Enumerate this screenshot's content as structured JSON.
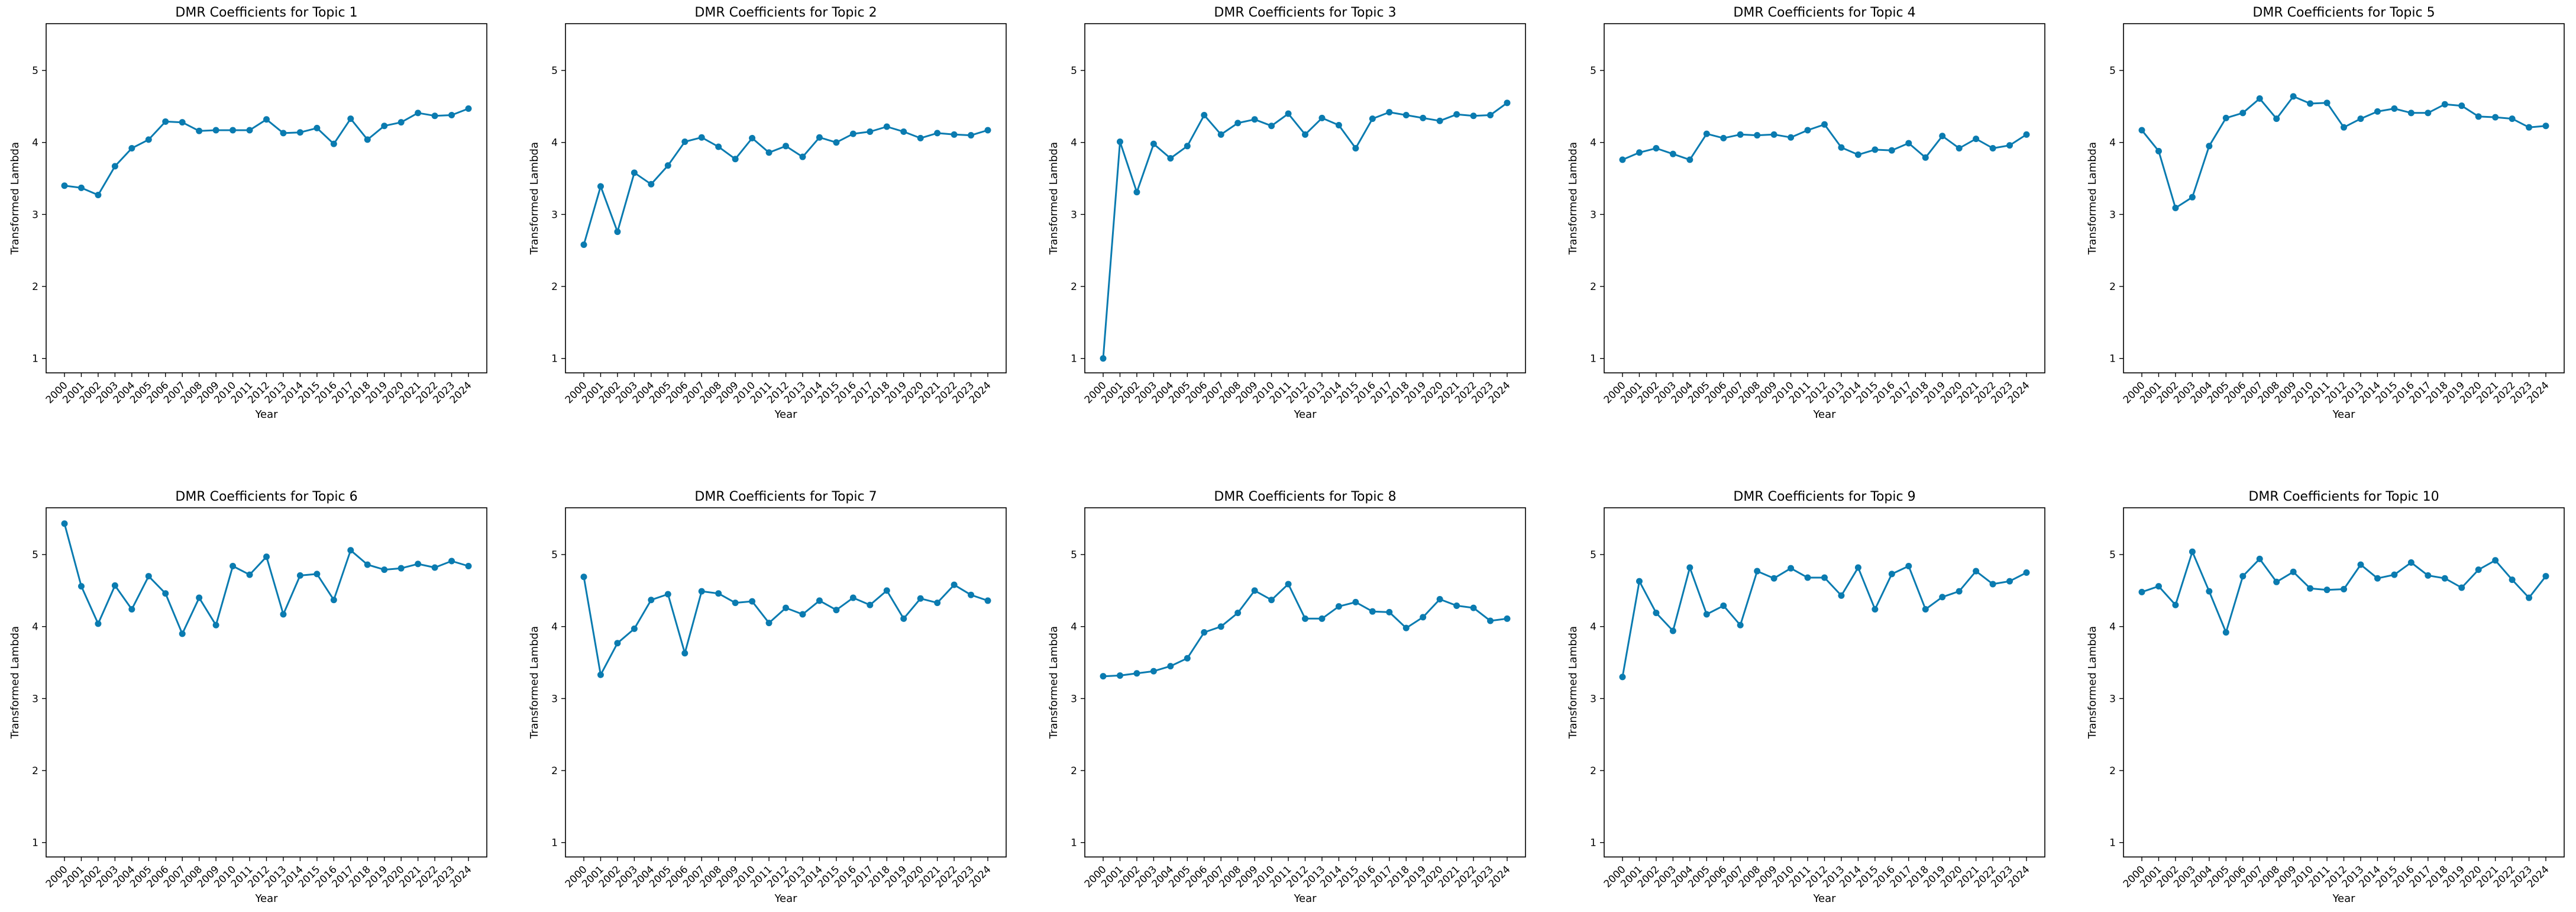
{
  "chart_data": [
    {
      "type": "line",
      "title": "DMR Coefficients for Topic 1",
      "xlabel": "Year",
      "ylabel": "Transformed Lambda",
      "x": [
        "2000",
        "2001",
        "2002",
        "2003",
        "2004",
        "2005",
        "2006",
        "2007",
        "2008",
        "2009",
        "2010",
        "2011",
        "2012",
        "2013",
        "2014",
        "2015",
        "2016",
        "2017",
        "2018",
        "2019",
        "2020",
        "2021",
        "2022",
        "2023",
        "2024"
      ],
      "values": [
        3.4,
        3.37,
        3.27,
        3.67,
        3.92,
        4.04,
        4.29,
        4.28,
        4.16,
        4.17,
        4.17,
        4.17,
        4.32,
        4.13,
        4.14,
        4.2,
        3.98,
        4.33,
        4.04,
        4.23,
        4.28,
        4.41,
        4.37,
        4.38,
        4.47
      ],
      "yticks": [
        1,
        2,
        3,
        4,
        5
      ],
      "ylim": [
        0.8,
        5.65
      ],
      "color": "#0a7bb0",
      "grid": false,
      "marker": "circle"
    },
    {
      "type": "line",
      "title": "DMR Coefficients for Topic 2",
      "xlabel": "Year",
      "ylabel": "Transformed Lambda",
      "x": [
        "2000",
        "2001",
        "2002",
        "2003",
        "2004",
        "2005",
        "2006",
        "2007",
        "2008",
        "2009",
        "2010",
        "2011",
        "2012",
        "2013",
        "2014",
        "2015",
        "2016",
        "2017",
        "2018",
        "2019",
        "2020",
        "2021",
        "2022",
        "2023",
        "2024"
      ],
      "values": [
        2.58,
        3.39,
        2.76,
        3.58,
        3.42,
        3.68,
        4.01,
        4.07,
        3.94,
        3.77,
        4.06,
        3.86,
        3.95,
        3.8,
        4.07,
        4.0,
        4.12,
        4.15,
        4.22,
        4.15,
        4.06,
        4.13,
        4.11,
        4.1,
        4.17
      ],
      "yticks": [
        1,
        2,
        3,
        4,
        5
      ],
      "ylim": [
        0.8,
        5.65
      ],
      "color": "#0a7bb0",
      "grid": false,
      "marker": "circle"
    },
    {
      "type": "line",
      "title": "DMR Coefficients for Topic 3",
      "xlabel": "Year",
      "ylabel": "Transformed Lambda",
      "x": [
        "2000",
        "2001",
        "2002",
        "2003",
        "2004",
        "2005",
        "2006",
        "2007",
        "2008",
        "2009",
        "2010",
        "2011",
        "2012",
        "2013",
        "2014",
        "2015",
        "2016",
        "2017",
        "2018",
        "2019",
        "2020",
        "2021",
        "2022",
        "2023",
        "2024"
      ],
      "values": [
        1.0,
        4.01,
        3.31,
        3.98,
        3.78,
        3.95,
        4.38,
        4.11,
        4.27,
        4.32,
        4.23,
        4.4,
        4.11,
        4.34,
        4.24,
        3.92,
        4.33,
        4.42,
        4.38,
        4.34,
        4.3,
        4.39,
        4.37,
        4.38,
        4.55
      ],
      "yticks": [
        1,
        2,
        3,
        4,
        5
      ],
      "ylim": [
        0.8,
        5.65
      ],
      "color": "#0a7bb0",
      "grid": false,
      "marker": "circle"
    },
    {
      "type": "line",
      "title": "DMR Coefficients for Topic 4",
      "xlabel": "Year",
      "ylabel": "Transformed Lambda",
      "x": [
        "2000",
        "2001",
        "2002",
        "2003",
        "2004",
        "2005",
        "2006",
        "2007",
        "2008",
        "2009",
        "2010",
        "2011",
        "2012",
        "2013",
        "2014",
        "2015",
        "2016",
        "2017",
        "2018",
        "2019",
        "2020",
        "2021",
        "2022",
        "2023",
        "2024"
      ],
      "values": [
        3.76,
        3.86,
        3.92,
        3.84,
        3.76,
        4.12,
        4.06,
        4.11,
        4.1,
        4.11,
        4.07,
        4.17,
        4.25,
        3.93,
        3.83,
        3.9,
        3.89,
        3.99,
        3.79,
        4.09,
        3.92,
        4.05,
        3.92,
        3.96,
        4.11
      ],
      "yticks": [
        1,
        2,
        3,
        4,
        5
      ],
      "ylim": [
        0.8,
        5.65
      ],
      "color": "#0a7bb0",
      "grid": false,
      "marker": "circle"
    },
    {
      "type": "line",
      "title": "DMR Coefficients for Topic 5",
      "xlabel": "Year",
      "ylabel": "Transformed Lambda",
      "x": [
        "2000",
        "2001",
        "2002",
        "2003",
        "2004",
        "2005",
        "2006",
        "2007",
        "2008",
        "2009",
        "2010",
        "2011",
        "2012",
        "2013",
        "2014",
        "2015",
        "2016",
        "2017",
        "2018",
        "2019",
        "2020",
        "2021",
        "2022",
        "2023",
        "2024"
      ],
      "values": [
        4.17,
        3.88,
        3.09,
        3.24,
        3.95,
        4.34,
        4.41,
        4.61,
        4.33,
        4.64,
        4.54,
        4.55,
        4.21,
        4.33,
        4.43,
        4.47,
        4.41,
        4.41,
        4.53,
        4.51,
        4.36,
        4.35,
        4.33,
        4.21,
        4.23
      ],
      "yticks": [
        1,
        2,
        3,
        4,
        5
      ],
      "ylim": [
        0.8,
        5.65
      ],
      "color": "#0a7bb0",
      "grid": false,
      "marker": "circle"
    },
    {
      "type": "line",
      "title": "DMR Coefficients for Topic 6",
      "xlabel": "Year",
      "ylabel": "Transformed Lambda",
      "x": [
        "2000",
        "2001",
        "2002",
        "2003",
        "2004",
        "2005",
        "2006",
        "2007",
        "2008",
        "2009",
        "2010",
        "2011",
        "2012",
        "2013",
        "2014",
        "2015",
        "2016",
        "2017",
        "2018",
        "2019",
        "2020",
        "2021",
        "2022",
        "2023",
        "2024"
      ],
      "values": [
        5.43,
        4.56,
        4.04,
        4.57,
        4.24,
        4.7,
        4.46,
        3.9,
        4.4,
        4.02,
        4.84,
        4.72,
        4.97,
        4.17,
        4.71,
        4.73,
        4.37,
        5.06,
        4.86,
        4.79,
        4.81,
        4.87,
        4.82,
        4.91,
        4.84
      ],
      "yticks": [
        1,
        2,
        3,
        4,
        5
      ],
      "ylim": [
        0.8,
        5.65
      ],
      "color": "#0a7bb0",
      "grid": false,
      "marker": "circle"
    },
    {
      "type": "line",
      "title": "DMR Coefficients for Topic 7",
      "xlabel": "Year",
      "ylabel": "Transformed Lambda",
      "x": [
        "2000",
        "2001",
        "2002",
        "2003",
        "2004",
        "2005",
        "2006",
        "2007",
        "2008",
        "2009",
        "2010",
        "2011",
        "2012",
        "2013",
        "2014",
        "2015",
        "2016",
        "2017",
        "2018",
        "2019",
        "2020",
        "2021",
        "2022",
        "2023",
        "2024"
      ],
      "values": [
        4.69,
        3.33,
        3.77,
        3.97,
        4.37,
        4.45,
        3.63,
        4.49,
        4.46,
        4.33,
        4.35,
        4.05,
        4.26,
        4.17,
        4.36,
        4.23,
        4.4,
        4.3,
        4.5,
        4.11,
        4.39,
        4.33,
        4.58,
        4.44,
        4.36
      ],
      "yticks": [
        1,
        2,
        3,
        4,
        5
      ],
      "ylim": [
        0.8,
        5.65
      ],
      "color": "#0a7bb0",
      "grid": false,
      "marker": "circle"
    },
    {
      "type": "line",
      "title": "DMR Coefficients for Topic 8",
      "xlabel": "Year",
      "ylabel": "Transformed Lambda",
      "x": [
        "2000",
        "2001",
        "2002",
        "2003",
        "2004",
        "2005",
        "2006",
        "2007",
        "2008",
        "2009",
        "2010",
        "2011",
        "2012",
        "2013",
        "2014",
        "2015",
        "2016",
        "2017",
        "2018",
        "2019",
        "2020",
        "2021",
        "2022",
        "2023",
        "2024"
      ],
      "values": [
        3.31,
        3.32,
        3.35,
        3.38,
        3.45,
        3.56,
        3.92,
        4.0,
        4.19,
        4.5,
        4.37,
        4.59,
        4.11,
        4.11,
        4.28,
        4.34,
        4.21,
        4.2,
        3.98,
        4.13,
        4.38,
        4.29,
        4.26,
        4.08,
        4.11
      ],
      "yticks": [
        1,
        2,
        3,
        4,
        5
      ],
      "ylim": [
        0.8,
        5.65
      ],
      "color": "#0a7bb0",
      "grid": false,
      "marker": "circle"
    },
    {
      "type": "line",
      "title": "DMR Coefficients for Topic 9",
      "xlabel": "Year",
      "ylabel": "Transformed Lambda",
      "x": [
        "2000",
        "2001",
        "2002",
        "2003",
        "2004",
        "2005",
        "2006",
        "2007",
        "2008",
        "2009",
        "2010",
        "2011",
        "2012",
        "2013",
        "2014",
        "2015",
        "2016",
        "2017",
        "2018",
        "2019",
        "2020",
        "2021",
        "2022",
        "2023",
        "2024"
      ],
      "values": [
        3.3,
        4.63,
        4.19,
        3.94,
        4.82,
        4.17,
        4.29,
        4.02,
        4.77,
        4.67,
        4.81,
        4.68,
        4.68,
        4.43,
        4.82,
        4.24,
        4.73,
        4.84,
        4.24,
        4.41,
        4.49,
        4.77,
        4.59,
        4.63,
        4.75
      ],
      "yticks": [
        1,
        2,
        3,
        4,
        5
      ],
      "ylim": [
        0.8,
        5.65
      ],
      "color": "#0a7bb0",
      "grid": false,
      "marker": "circle"
    },
    {
      "type": "line",
      "title": "DMR Coefficients for Topic 10",
      "xlabel": "Year",
      "ylabel": "Transformed Lambda",
      "x": [
        "2000",
        "2001",
        "2002",
        "2003",
        "2004",
        "2005",
        "2006",
        "2007",
        "2008",
        "2009",
        "2010",
        "2011",
        "2012",
        "2013",
        "2014",
        "2015",
        "2016",
        "2017",
        "2018",
        "2019",
        "2020",
        "2021",
        "2022",
        "2023",
        "2024"
      ],
      "values": [
        4.48,
        4.56,
        4.3,
        5.04,
        4.49,
        3.92,
        4.7,
        4.94,
        4.62,
        4.76,
        4.53,
        4.51,
        4.52,
        4.86,
        4.67,
        4.72,
        4.89,
        4.71,
        4.67,
        4.54,
        4.79,
        4.92,
        4.65,
        4.4,
        4.7
      ],
      "yticks": [
        1,
        2,
        3,
        4,
        5
      ],
      "ylim": [
        0.8,
        5.65
      ],
      "color": "#0a7bb0",
      "grid": false,
      "marker": "circle"
    }
  ]
}
